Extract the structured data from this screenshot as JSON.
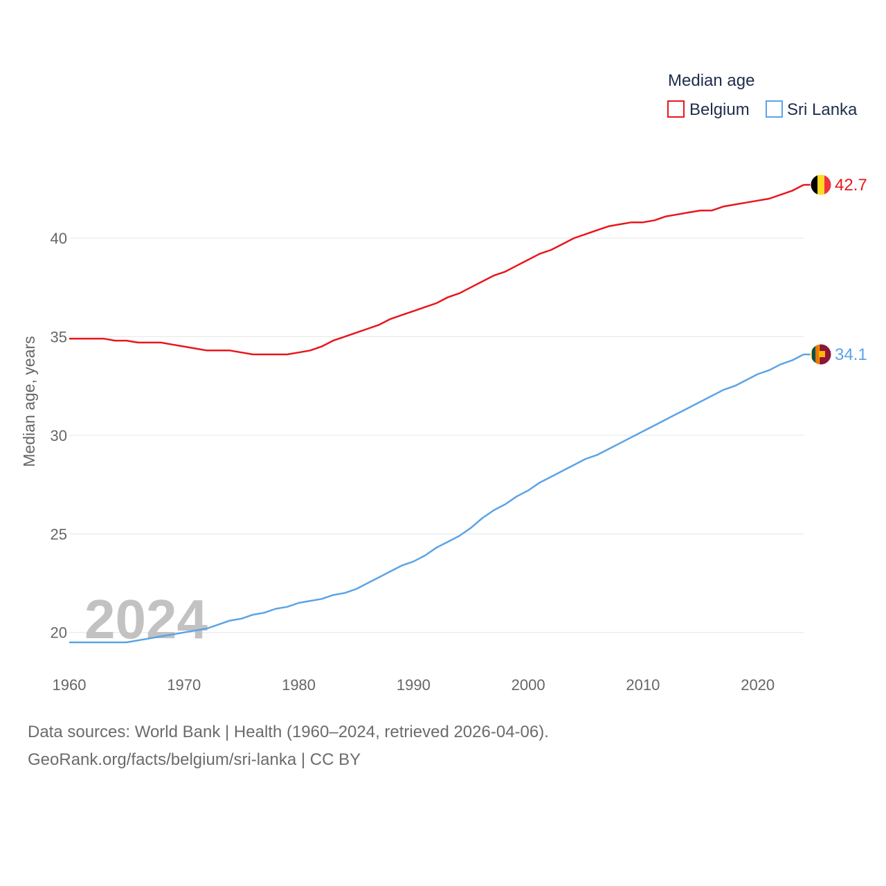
{
  "chart_data": {
    "type": "line",
    "ylabel": "Median age, years",
    "xlim": [
      1960,
      2024
    ],
    "ylim": [
      18.2,
      44
    ],
    "yticks": [
      20,
      25,
      30,
      35,
      40
    ],
    "xticks": [
      1960,
      1970,
      1980,
      1990,
      2000,
      2010,
      2020
    ],
    "legend_title": "Median age",
    "legend_placement": "top-right",
    "watermark_year": "2024",
    "series": [
      {
        "name": "Belgium",
        "color": "#e8161b",
        "end_label": "42.7",
        "flag": "belgium-flag",
        "x": [
          1960,
          1961,
          1962,
          1963,
          1964,
          1965,
          1966,
          1967,
          1968,
          1969,
          1970,
          1971,
          1972,
          1973,
          1974,
          1975,
          1976,
          1977,
          1978,
          1979,
          1980,
          1981,
          1982,
          1983,
          1984,
          1985,
          1986,
          1987,
          1988,
          1989,
          1990,
          1991,
          1992,
          1993,
          1994,
          1995,
          1996,
          1997,
          1998,
          1999,
          2000,
          2001,
          2002,
          2003,
          2004,
          2005,
          2006,
          2007,
          2008,
          2009,
          2010,
          2011,
          2012,
          2013,
          2014,
          2015,
          2016,
          2017,
          2018,
          2019,
          2020,
          2021,
          2022,
          2023,
          2024
        ],
        "values": [
          34.9,
          34.9,
          34.9,
          34.9,
          34.8,
          34.8,
          34.7,
          34.7,
          34.7,
          34.6,
          34.5,
          34.4,
          34.3,
          34.3,
          34.3,
          34.2,
          34.1,
          34.1,
          34.1,
          34.1,
          34.2,
          34.3,
          34.5,
          34.8,
          35.0,
          35.2,
          35.4,
          35.6,
          35.9,
          36.1,
          36.3,
          36.5,
          36.7,
          37.0,
          37.2,
          37.5,
          37.8,
          38.1,
          38.3,
          38.6,
          38.9,
          39.2,
          39.4,
          39.7,
          40.0,
          40.2,
          40.4,
          40.6,
          40.7,
          40.8,
          40.8,
          40.9,
          41.1,
          41.2,
          41.3,
          41.4,
          41.4,
          41.6,
          41.7,
          41.8,
          41.9,
          42.0,
          42.2,
          42.4,
          42.7
        ]
      },
      {
        "name": "Sri Lanka",
        "color": "#5ba3e6",
        "end_label": "34.1",
        "flag": "sri-lanka-flag",
        "x": [
          1960,
          1961,
          1962,
          1963,
          1964,
          1965,
          1966,
          1967,
          1968,
          1969,
          1970,
          1971,
          1972,
          1973,
          1974,
          1975,
          1976,
          1977,
          1978,
          1979,
          1980,
          1981,
          1982,
          1983,
          1984,
          1985,
          1986,
          1987,
          1988,
          1989,
          1990,
          1991,
          1992,
          1993,
          1994,
          1995,
          1996,
          1997,
          1998,
          1999,
          2000,
          2001,
          2002,
          2003,
          2004,
          2005,
          2006,
          2007,
          2008,
          2009,
          2010,
          2011,
          2012,
          2013,
          2014,
          2015,
          2016,
          2017,
          2018,
          2019,
          2020,
          2021,
          2022,
          2023,
          2024
        ],
        "values": [
          19.5,
          19.5,
          19.5,
          19.5,
          19.5,
          19.5,
          19.6,
          19.7,
          19.8,
          19.9,
          20.0,
          20.1,
          20.2,
          20.4,
          20.6,
          20.7,
          20.9,
          21.0,
          21.2,
          21.3,
          21.5,
          21.6,
          21.7,
          21.9,
          22.0,
          22.2,
          22.5,
          22.8,
          23.1,
          23.4,
          23.6,
          23.9,
          24.3,
          24.6,
          24.9,
          25.3,
          25.8,
          26.2,
          26.5,
          26.9,
          27.2,
          27.6,
          27.9,
          28.2,
          28.5,
          28.8,
          29.0,
          29.3,
          29.6,
          29.9,
          30.2,
          30.5,
          30.8,
          31.1,
          31.4,
          31.7,
          32.0,
          32.3,
          32.5,
          32.8,
          33.1,
          33.3,
          33.6,
          33.8,
          34.1
        ]
      }
    ]
  },
  "footer": {
    "line1": "Data sources: World Bank | Health (1960–2024, retrieved 2026-04-06).",
    "line2": "GeoRank.org/facts/belgium/sri-lanka | CC BY"
  }
}
